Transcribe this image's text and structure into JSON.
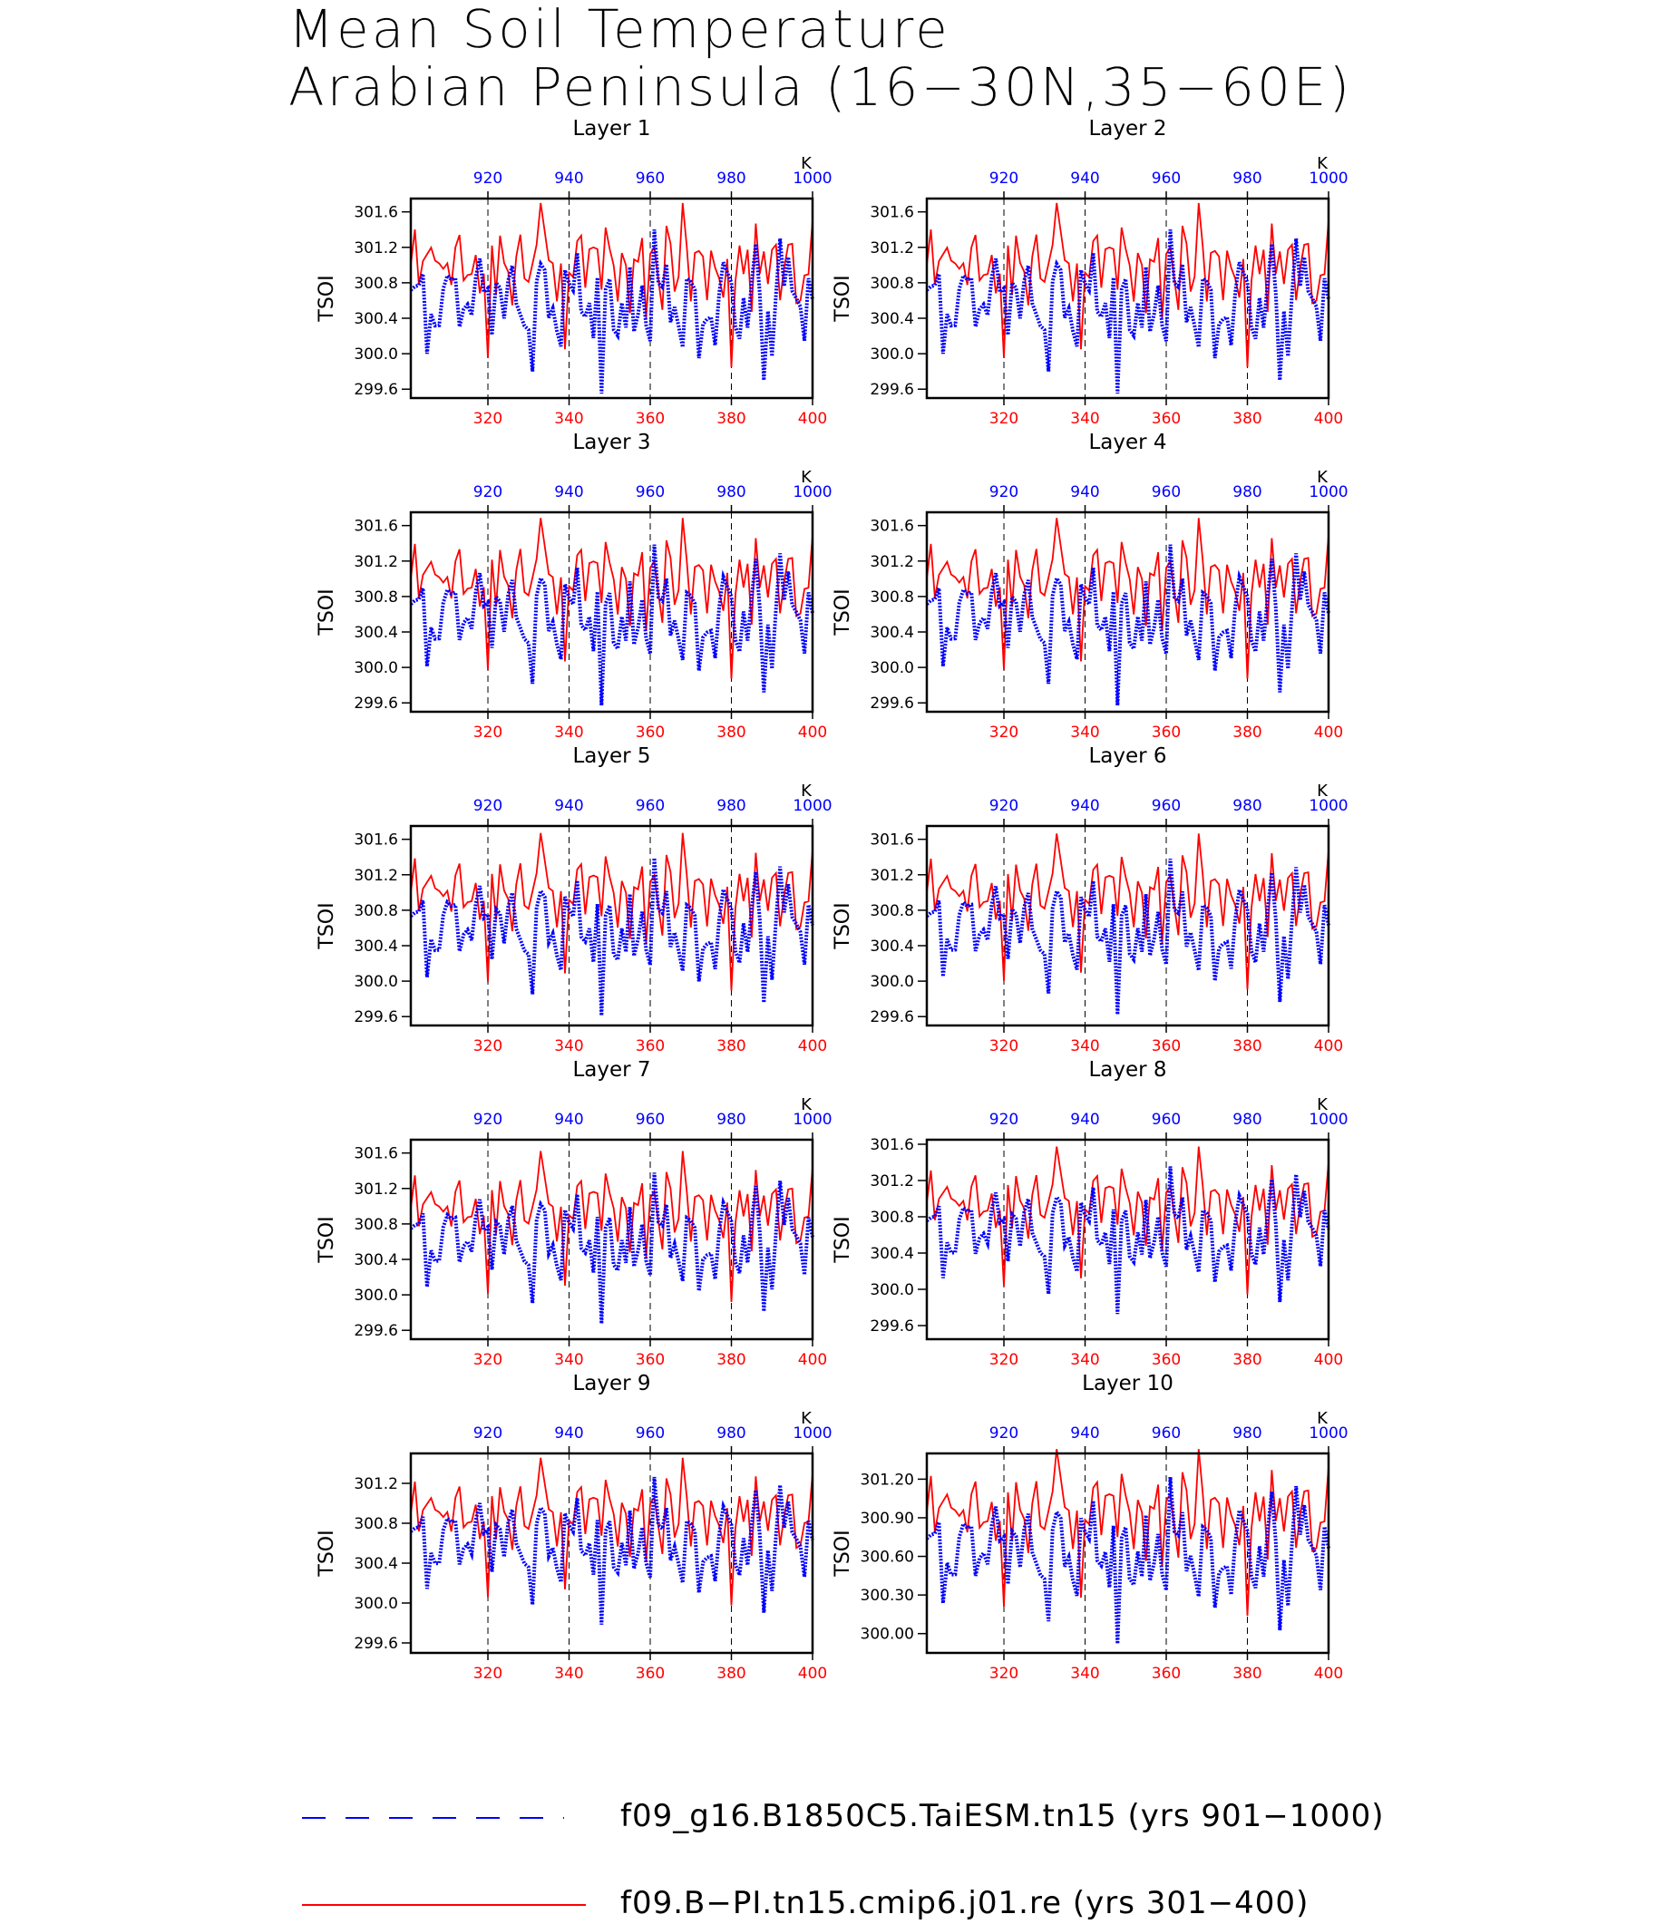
{
  "title": {
    "line1": "Mean Soil Temperature",
    "line2": "Arabian Peninsula (16−30N,35−60E)"
  },
  "colors": {
    "modelA": "#0000ff",
    "modelB": "#ff0000",
    "axis": "#000000"
  },
  "legend": [
    {
      "label": "f09_g16.B1850C5.TaiESM.tn15 (yrs 901−1000)",
      "color": "#0000ff",
      "style": "dashed"
    },
    {
      "label": "f09.B−PI.tn15.cmip6.j01.re (yrs 301−400)",
      "color": "#ff0000",
      "style": "solid"
    }
  ],
  "chart_data": [
    {
      "type": "line",
      "title": "Layer 1",
      "ylabel": "TSOI",
      "ylim": [
        299.5,
        301.75
      ],
      "yticks": [
        299.6,
        300.0,
        300.4,
        300.8,
        301.2,
        301.6
      ],
      "ytick_labels": [
        "299.6",
        "300.0",
        "300.4",
        "300.8",
        "301.2",
        "301.6"
      ],
      "x_bottom_ticks": [
        320,
        340,
        360,
        380,
        400
      ],
      "x_top_ticks": [
        920,
        940,
        960,
        980,
        1000
      ],
      "x_top_unit": "K",
      "xlim_bottom": [
        301,
        400
      ],
      "xlim_top": [
        901,
        1000
      ],
      "blue_offset": 0.0,
      "red_offset": 0.0,
      "amp": 1.0,
      "series": [
        {
          "name": "f09_g16.B1850C5.TaiESM.tn15 (yrs 901−1000)",
          "color": "#0000ff",
          "x": "901-1000"
        },
        {
          "name": "f09.B−PI.tn15.cmip6.j01.re (yrs 301−400)",
          "color": "#ff0000",
          "x": "301-400"
        }
      ]
    },
    {
      "type": "line",
      "title": "Layer 2",
      "ylabel": "TSOI",
      "ylim": [
        299.5,
        301.75
      ],
      "yticks": [
        299.6,
        300.0,
        300.4,
        300.8,
        301.2,
        301.6
      ],
      "ytick_labels": [
        "299.6",
        "300.0",
        "300.4",
        "300.8",
        "301.2",
        "301.6"
      ],
      "x_bottom_ticks": [
        320,
        340,
        360,
        380,
        400
      ],
      "x_top_ticks": [
        920,
        940,
        960,
        980,
        1000
      ],
      "x_top_unit": "K",
      "xlim_bottom": [
        301,
        400
      ],
      "xlim_top": [
        901,
        1000
      ],
      "blue_offset": 0.0,
      "red_offset": 0.0,
      "amp": 1.0,
      "series": [
        {
          "name": "f09_g16.B1850C5.TaiESM.tn15 (yrs 901−1000)",
          "color": "#0000ff",
          "x": "901-1000"
        },
        {
          "name": "f09.B−PI.tn15.cmip6.j01.re (yrs 301−400)",
          "color": "#ff0000",
          "x": "301-400"
        }
      ]
    },
    {
      "type": "line",
      "title": "Layer 3",
      "ylabel": "TSOI",
      "ylim": [
        299.5,
        301.75
      ],
      "yticks": [
        299.6,
        300.0,
        300.4,
        300.8,
        301.2,
        301.6
      ],
      "ytick_labels": [
        "299.6",
        "300.0",
        "300.4",
        "300.8",
        "301.2",
        "301.6"
      ],
      "x_bottom_ticks": [
        320,
        340,
        360,
        380,
        400
      ],
      "x_top_ticks": [
        920,
        940,
        960,
        980,
        1000
      ],
      "x_top_unit": "K",
      "xlim_bottom": [
        301,
        400
      ],
      "xlim_top": [
        901,
        1000
      ],
      "blue_offset": 0.0,
      "red_offset": 0.0,
      "amp": 0.98,
      "series": [
        {
          "name": "f09_g16.B1850C5.TaiESM.tn15 (yrs 901−1000)",
          "color": "#0000ff",
          "x": "901-1000"
        },
        {
          "name": "f09.B−PI.tn15.cmip6.j01.re (yrs 301−400)",
          "color": "#ff0000",
          "x": "301-400"
        }
      ]
    },
    {
      "type": "line",
      "title": "Layer 4",
      "ylabel": "TSOI",
      "ylim": [
        299.5,
        301.75
      ],
      "yticks": [
        299.6,
        300.0,
        300.4,
        300.8,
        301.2,
        301.6
      ],
      "ytick_labels": [
        "299.6",
        "300.0",
        "300.4",
        "300.8",
        "301.2",
        "301.6"
      ],
      "x_bottom_ticks": [
        320,
        340,
        360,
        380,
        400
      ],
      "x_top_ticks": [
        920,
        940,
        960,
        980,
        1000
      ],
      "x_top_unit": "K",
      "xlim_bottom": [
        301,
        400
      ],
      "xlim_top": [
        901,
        1000
      ],
      "blue_offset": 0.0,
      "red_offset": 0.0,
      "amp": 0.98,
      "series": [
        {
          "name": "f09_g16.B1850C5.TaiESM.tn15 (yrs 901−1000)",
          "color": "#0000ff",
          "x": "901-1000"
        },
        {
          "name": "f09.B−PI.tn15.cmip6.j01.re (yrs 301−400)",
          "color": "#ff0000",
          "x": "301-400"
        }
      ]
    },
    {
      "type": "line",
      "title": "Layer 5",
      "ylabel": "TSOI",
      "ylim": [
        299.5,
        301.75
      ],
      "yticks": [
        299.6,
        300.0,
        300.4,
        300.8,
        301.2,
        301.6
      ],
      "ytick_labels": [
        "299.6",
        "300.0",
        "300.4",
        "300.8",
        "301.2",
        "301.6"
      ],
      "x_bottom_ticks": [
        320,
        340,
        360,
        380,
        400
      ],
      "x_top_ticks": [
        920,
        940,
        960,
        980,
        1000
      ],
      "x_top_unit": "K",
      "xlim_bottom": [
        301,
        400
      ],
      "xlim_top": [
        901,
        1000
      ],
      "blue_offset": 0.02,
      "red_offset": 0.0,
      "amp": 0.96,
      "series": [
        {
          "name": "f09_g16.B1850C5.TaiESM.tn15 (yrs 901−1000)",
          "color": "#0000ff",
          "x": "901-1000"
        },
        {
          "name": "f09.B−PI.tn15.cmip6.j01.re (yrs 301−400)",
          "color": "#ff0000",
          "x": "301-400"
        }
      ]
    },
    {
      "type": "line",
      "title": "Layer 6",
      "ylabel": "TSOI",
      "ylim": [
        299.5,
        301.75
      ],
      "yticks": [
        299.6,
        300.0,
        300.4,
        300.8,
        301.2,
        301.6
      ],
      "ytick_labels": [
        "299.6",
        "300.0",
        "300.4",
        "300.8",
        "301.2",
        "301.6"
      ],
      "x_bottom_ticks": [
        320,
        340,
        360,
        380,
        400
      ],
      "x_top_ticks": [
        920,
        940,
        960,
        980,
        1000
      ],
      "x_top_unit": "K",
      "xlim_bottom": [
        301,
        400
      ],
      "xlim_top": [
        901,
        1000
      ],
      "blue_offset": 0.02,
      "red_offset": 0.0,
      "amp": 0.95,
      "series": [
        {
          "name": "f09_g16.B1850C5.TaiESM.tn15 (yrs 901−1000)",
          "color": "#0000ff",
          "x": "901-1000"
        },
        {
          "name": "f09.B−PI.tn15.cmip6.j01.re (yrs 301−400)",
          "color": "#ff0000",
          "x": "301-400"
        }
      ]
    },
    {
      "type": "line",
      "title": "Layer 7",
      "ylabel": "TSOI",
      "ylim": [
        299.5,
        301.75
      ],
      "yticks": [
        299.6,
        300.0,
        300.4,
        300.8,
        301.2,
        301.6
      ],
      "ytick_labels": [
        "299.6",
        "300.0",
        "300.4",
        "300.8",
        "301.2",
        "301.6"
      ],
      "x_bottom_ticks": [
        320,
        340,
        360,
        380,
        400
      ],
      "x_top_ticks": [
        920,
        940,
        960,
        980,
        1000
      ],
      "x_top_unit": "K",
      "xlim_bottom": [
        301,
        400
      ],
      "xlim_top": [
        901,
        1000
      ],
      "blue_offset": 0.04,
      "red_offset": -0.02,
      "amp": 0.92,
      "series": [
        {
          "name": "f09_g16.B1850C5.TaiESM.tn15 (yrs 901−1000)",
          "color": "#0000ff",
          "x": "901-1000"
        },
        {
          "name": "f09.B−PI.tn15.cmip6.j01.re (yrs 301−400)",
          "color": "#ff0000",
          "x": "301-400"
        }
      ]
    },
    {
      "type": "line",
      "title": "Layer 8",
      "ylabel": "TSOI",
      "ylim": [
        299.45,
        301.65
      ],
      "yticks": [
        299.6,
        300.0,
        300.4,
        300.8,
        301.2,
        301.6
      ],
      "ytick_labels": [
        "299.6",
        "300.0",
        "300.4",
        "300.8",
        "301.2",
        "301.6"
      ],
      "x_bottom_ticks": [
        320,
        340,
        360,
        380,
        400
      ],
      "x_top_ticks": [
        920,
        940,
        960,
        980,
        1000
      ],
      "x_top_unit": "K",
      "xlim_bottom": [
        301,
        400
      ],
      "xlim_top": [
        901,
        1000
      ],
      "blue_offset": 0.05,
      "red_offset": -0.04,
      "amp": 0.88,
      "series": [
        {
          "name": "f09_g16.B1850C5.TaiESM.tn15 (yrs 901−1000)",
          "color": "#0000ff",
          "x": "901-1000"
        },
        {
          "name": "f09.B−PI.tn15.cmip6.j01.re (yrs 301−400)",
          "color": "#ff0000",
          "x": "301-400"
        }
      ]
    },
    {
      "type": "line",
      "title": "Layer 9",
      "ylabel": "TSOI",
      "ylim": [
        299.5,
        301.5
      ],
      "yticks": [
        299.6,
        300.0,
        300.4,
        300.8,
        301.2
      ],
      "ytick_labels": [
        "299.6",
        "300.0",
        "300.4",
        "300.8",
        "301.2"
      ],
      "x_bottom_ticks": [
        320,
        340,
        360,
        380,
        400
      ],
      "x_top_ticks": [
        920,
        940,
        960,
        980,
        1000
      ],
      "x_top_unit": "K",
      "xlim_bottom": [
        301,
        400
      ],
      "xlim_top": [
        901,
        1000
      ],
      "blue_offset": 0.02,
      "red_offset": -0.1,
      "amp": 0.8,
      "series": [
        {
          "name": "f09_g16.B1850C5.TaiESM.tn15 (yrs 901−1000)",
          "color": "#0000ff",
          "x": "901-1000"
        },
        {
          "name": "f09.B−PI.tn15.cmip6.j01.re (yrs 301−400)",
          "color": "#ff0000",
          "x": "301-400"
        }
      ]
    },
    {
      "type": "line",
      "title": "Layer 10",
      "ylabel": "TSOI",
      "ylim": [
        299.85,
        301.4
      ],
      "yticks": [
        300.0,
        300.3,
        300.6,
        300.9,
        301.2
      ],
      "ytick_labels": [
        "300.00",
        "300.30",
        "300.60",
        "300.90",
        "301.20"
      ],
      "x_bottom_ticks": [
        320,
        340,
        360,
        380,
        400
      ],
      "x_top_ticks": [
        920,
        940,
        960,
        980,
        1000
      ],
      "x_top_unit": "K",
      "xlim_bottom": [
        301,
        400
      ],
      "xlim_top": [
        901,
        1000
      ],
      "blue_offset": 0.05,
      "red_offset": -0.05,
      "amp": 0.7,
      "series": [
        {
          "name": "f09_g16.B1850C5.TaiESM.tn15 (yrs 901−1000)",
          "color": "#0000ff",
          "x": "901-1000"
        },
        {
          "name": "f09.B−PI.tn15.cmip6.j01.re (yrs 301−400)",
          "color": "#ff0000",
          "x": "301-400"
        }
      ]
    }
  ]
}
